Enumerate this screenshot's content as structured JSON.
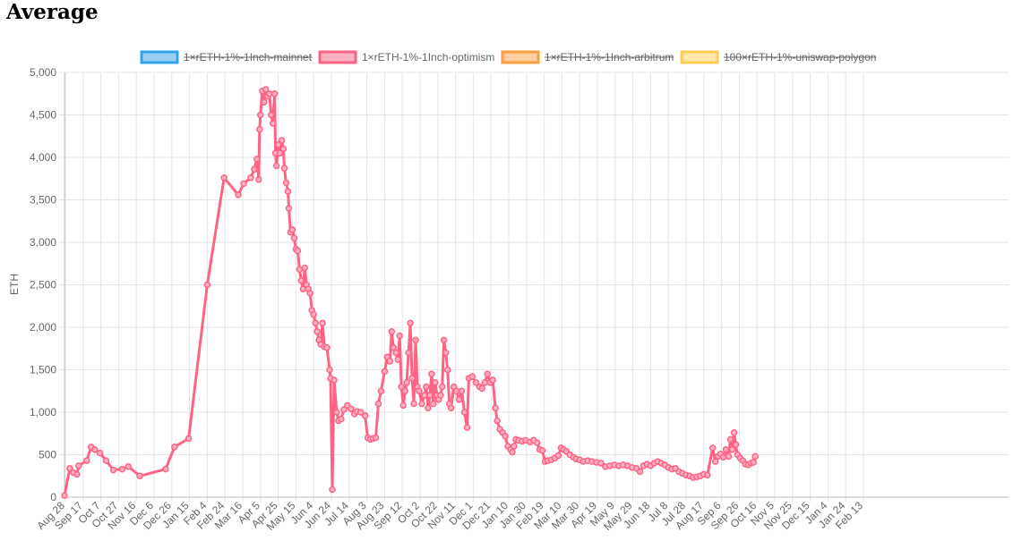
{
  "page": {
    "title": "Average"
  },
  "colors": {
    "grid": "#e5e5e5",
    "axis": "#bdbdbd",
    "tick_text": "#666666"
  },
  "chart_data": {
    "type": "line",
    "title": "",
    "xlabel": "",
    "ylabel": "ETH",
    "ylim": [
      0,
      5000
    ],
    "y_ticks": [
      "0",
      "500",
      "1,000",
      "1,500",
      "2,000",
      "2,500",
      "3,000",
      "3,500",
      "4,000",
      "4,500",
      "5,000"
    ],
    "y_tick_values": [
      0,
      500,
      1000,
      1500,
      2000,
      2500,
      3000,
      3500,
      4000,
      4500,
      5000
    ],
    "x_ticks": [
      "Aug 28",
      "Sep 17",
      "Oct 7",
      "Oct 27",
      "Nov 16",
      "Dec 6",
      "Dec 26",
      "Jan 15",
      "Feb 4",
      "Feb 24",
      "Mar 16",
      "Apr 5",
      "Apr 25",
      "May 15",
      "Jun 4",
      "Jun 24",
      "Jul 14",
      "Aug 3",
      "Aug 23",
      "Sep 12",
      "Oct 2",
      "Oct 22",
      "Nov 11",
      "Dec 1",
      "Dec 21",
      "Jan 10",
      "Jan 30",
      "Feb 19",
      "Mar 10",
      "Mar 30",
      "Apr 19",
      "May 9",
      "May 29",
      "Jun 18",
      "Jul 8",
      "Jul 28",
      "Aug 17",
      "Sep 6",
      "Sep 26",
      "Oct 16",
      "Nov 5",
      "Nov 25",
      "Dec 15",
      "Jan 4",
      "Jan 24",
      "Feb 13"
    ],
    "grid": true,
    "legend_position": "top",
    "series": [
      {
        "name": "1×rETH-1%-1Inch-mainnet",
        "color": "#36a2eb",
        "fill": "#9ad0f5",
        "hidden": true,
        "points": []
      },
      {
        "name": "1×rETH-1%-1Inch-optimism",
        "color": "#ff6384",
        "fill": "#ffb1c1",
        "hidden": false,
        "points": [
          [
            "Aug 28 2021",
            20
          ],
          [
            "Sep 3 2021",
            340
          ],
          [
            "Sep 7 2021",
            290
          ],
          [
            "Sep 11 2021",
            270
          ],
          [
            "Sep 13 2021",
            370
          ],
          [
            "Sep 22 2021",
            430
          ],
          [
            "Sep 27 2021",
            590
          ],
          [
            "Oct 1 2021",
            560
          ],
          [
            "Oct 7 2021",
            520
          ],
          [
            "Oct 14 2021",
            430
          ],
          [
            "Oct 22 2021",
            320
          ],
          [
            "Nov 1 2021",
            330
          ],
          [
            "Nov 8 2021",
            360
          ],
          [
            "Nov 21 2021",
            250
          ],
          [
            "Dec 20 2021",
            330
          ],
          [
            "Dec 30 2021",
            590
          ],
          [
            "Jan 15 2022",
            690
          ],
          [
            "Feb 5 2022",
            2500
          ],
          [
            "Feb 24 2022",
            3760
          ],
          [
            "Mar 12 2022",
            3560
          ],
          [
            "Mar 18 2022",
            3690
          ],
          [
            "Mar 26 2022",
            3760
          ],
          [
            "Mar 30 2022",
            3860
          ],
          [
            "Apr 2 2022",
            3980
          ],
          [
            "Apr 4 2022",
            3740
          ],
          [
            "Apr 5 2022",
            4330
          ],
          [
            "Apr 6 2022",
            4500
          ],
          [
            "Apr 8 2022",
            4780
          ],
          [
            "Apr 10 2022",
            4650
          ],
          [
            "Apr 12 2022",
            4800
          ],
          [
            "Apr 14 2022",
            4720
          ],
          [
            "Apr 16 2022",
            4750
          ],
          [
            "Apr 18 2022",
            4500
          ],
          [
            "Apr 20 2022",
            4400
          ],
          [
            "Apr 22 2022",
            4750
          ],
          [
            "Apr 23 2022",
            4050
          ],
          [
            "Apr 24 2022",
            3900
          ],
          [
            "Apr 26 2022",
            4150
          ],
          [
            "Apr 28 2022",
            4050
          ],
          [
            "Apr 30 2022",
            4200
          ],
          [
            "May 2 2022",
            4100
          ],
          [
            "May 3 2022",
            3870
          ],
          [
            "May 5 2022",
            3700
          ],
          [
            "May 7 2022",
            3600
          ],
          [
            "May 8 2022",
            3400
          ],
          [
            "May 10 2022",
            3120
          ],
          [
            "May 12 2022",
            3150
          ],
          [
            "May 14 2022",
            3050
          ],
          [
            "May 16 2022",
            2920
          ],
          [
            "May 18 2022",
            2900
          ],
          [
            "May 20 2022",
            2680
          ],
          [
            "May 22 2022",
            2550
          ],
          [
            "May 24 2022",
            2450
          ],
          [
            "May 26 2022",
            2700
          ],
          [
            "May 28 2022",
            2500
          ],
          [
            "May 30 2022",
            2450
          ],
          [
            "Jun 1 2022",
            2400
          ],
          [
            "Jun 3 2022",
            2200
          ],
          [
            "Jun 5 2022",
            2150
          ],
          [
            "Jun 7 2022",
            2050
          ],
          [
            "Jun 9 2022",
            1950
          ],
          [
            "Jun 11 2022",
            1850
          ],
          [
            "Jun 13 2022",
            1800
          ],
          [
            "Jun 15 2022",
            2050
          ],
          [
            "Jun 17 2022",
            1770
          ],
          [
            "Jun 20 2022",
            1760
          ],
          [
            "Jun 23 2022",
            1500
          ],
          [
            "Jun 24 2022",
            1400
          ],
          [
            "Jun 26 2022",
            90
          ],
          [
            "Jun 28 2022",
            1380
          ],
          [
            "Jul 1 2022",
            1000
          ],
          [
            "Jul 3 2022",
            900
          ],
          [
            "Jul 6 2022",
            920
          ],
          [
            "Jul 9 2022",
            1030
          ],
          [
            "Jul 13 2022",
            1080
          ],
          [
            "Jul 17 2022",
            1040
          ],
          [
            "Jul 21 2022",
            980
          ],
          [
            "Jul 24 2022",
            1010
          ],
          [
            "Jul 28 2022",
            1000
          ],
          [
            "Aug 2 2022",
            960
          ],
          [
            "Aug 5 2022",
            700
          ],
          [
            "Aug 8 2022",
            680
          ],
          [
            "Aug 11 2022",
            690
          ],
          [
            "Aug 14 2022",
            700
          ],
          [
            "Aug 17 2022",
            1100
          ],
          [
            "Aug 20 2022",
            1250
          ],
          [
            "Aug 24 2022",
            1480
          ],
          [
            "Aug 27 2022",
            1650
          ],
          [
            "Aug 30 2022",
            1600
          ],
          [
            "Sep 1 2022",
            1950
          ],
          [
            "Sep 3 2022",
            1760
          ],
          [
            "Sep 6 2022",
            1700
          ],
          [
            "Sep 8 2022",
            1620
          ],
          [
            "Sep 10 2022",
            1900
          ],
          [
            "Sep 12 2022",
            1300
          ],
          [
            "Sep 14 2022",
            1080
          ],
          [
            "Sep 16 2022",
            1250
          ],
          [
            "Sep 18 2022",
            1350
          ],
          [
            "Sep 20 2022",
            1700
          ],
          [
            "Sep 22 2022",
            2050
          ],
          [
            "Sep 24 2022",
            1400
          ],
          [
            "Sep 26 2022",
            1100
          ],
          [
            "Sep 28 2022",
            1850
          ],
          [
            "Sep 30 2022",
            1300
          ],
          [
            "Oct 2 2022",
            1250
          ],
          [
            "Oct 5 2022",
            1100
          ],
          [
            "Oct 8 2022",
            1200
          ],
          [
            "Oct 10 2022",
            1300
          ],
          [
            "Oct 12 2022",
            1050
          ],
          [
            "Oct 14 2022",
            1200
          ],
          [
            "Oct 16 2022",
            1450
          ],
          [
            "Oct 18 2022",
            1100
          ],
          [
            "Oct 20 2022",
            1350
          ],
          [
            "Oct 22 2022",
            1200
          ],
          [
            "Oct 24 2022",
            1150
          ],
          [
            "Oct 26 2022",
            1200
          ],
          [
            "Oct 28 2022",
            1300
          ],
          [
            "Oct 30 2022",
            1850
          ],
          [
            "Nov 1 2022",
            1700
          ],
          [
            "Nov 3 2022",
            1500
          ],
          [
            "Nov 5 2022",
            1100
          ],
          [
            "Nov 7 2022",
            1050
          ],
          [
            "Nov 10 2022",
            1300
          ],
          [
            "Nov 13 2022",
            1250
          ],
          [
            "Nov 16 2022",
            1150
          ],
          [
            "Nov 19 2022",
            1250
          ],
          [
            "Nov 22 2022",
            1000
          ],
          [
            "Nov 25 2022",
            820
          ],
          [
            "Nov 27 2022",
            1400
          ],
          [
            "Dec 1 2022",
            1420
          ],
          [
            "Dec 5 2022",
            1350
          ],
          [
            "Dec 9 2022",
            1300
          ],
          [
            "Dec 12 2022",
            1280
          ],
          [
            "Dec 15 2022",
            1350
          ],
          [
            "Dec 18 2022",
            1450
          ],
          [
            "Dec 21 2022",
            1350
          ],
          [
            "Dec 24 2022",
            1380
          ],
          [
            "Dec 27 2022",
            1050
          ],
          [
            "Dec 29 2022",
            900
          ],
          [
            "Jan 1 2023",
            800
          ],
          [
            "Jan 4 2023",
            760
          ],
          [
            "Jan 7 2023",
            720
          ],
          [
            "Jan 10 2023",
            600
          ],
          [
            "Jan 13 2023",
            560
          ],
          [
            "Jan 15 2023",
            530
          ],
          [
            "Jan 17 2023",
            600
          ],
          [
            "Jan 19 2023",
            680
          ],
          [
            "Jan 22 2023",
            670
          ],
          [
            "Jan 26 2023",
            660
          ],
          [
            "Jan 30 2023",
            670
          ],
          [
            "Feb 4 2023",
            650
          ],
          [
            "Feb 8 2023",
            670
          ],
          [
            "Feb 12 2023",
            640
          ],
          [
            "Feb 15 2023",
            560
          ],
          [
            "Feb 18 2023",
            550
          ],
          [
            "Feb 21 2023",
            420
          ],
          [
            "Feb 24 2023",
            430
          ],
          [
            "Feb 28 2023",
            440
          ],
          [
            "Mar 4 2023",
            460
          ],
          [
            "Mar 8 2023",
            490
          ],
          [
            "Mar 11 2023",
            580
          ],
          [
            "Mar 14 2023",
            560
          ],
          [
            "Mar 17 2023",
            540
          ],
          [
            "Mar 21 2023",
            500
          ],
          [
            "Mar 25 2023",
            470
          ],
          [
            "Mar 28 2023",
            450
          ],
          [
            "Apr 1 2023",
            440
          ],
          [
            "Apr 5 2023",
            420
          ],
          [
            "Apr 10 2023",
            430
          ],
          [
            "Apr 15 2023",
            420
          ],
          [
            "Apr 20 2023",
            410
          ],
          [
            "Apr 25 2023",
            400
          ],
          [
            "Apr 30 2023",
            360
          ],
          [
            "May 5 2023",
            370
          ],
          [
            "May 10 2023",
            380
          ],
          [
            "May 15 2023",
            370
          ],
          [
            "May 20 2023",
            380
          ],
          [
            "May 25 2023",
            370
          ],
          [
            "May 30 2023",
            350
          ],
          [
            "Jun 4 2023",
            340
          ],
          [
            "Jun 8 2023",
            300
          ],
          [
            "Jun 12 2023",
            370
          ],
          [
            "Jun 16 2023",
            390
          ],
          [
            "Jun 20 2023",
            370
          ],
          [
            "Jun 24 2023",
            400
          ],
          [
            "Jun 28 2023",
            420
          ],
          [
            "Jul 2 2023",
            400
          ],
          [
            "Jul 6 2023",
            380
          ],
          [
            "Jul 10 2023",
            350
          ],
          [
            "Jul 14 2023",
            330
          ],
          [
            "Jul 18 2023",
            340
          ],
          [
            "Jul 22 2023",
            300
          ],
          [
            "Jul 26 2023",
            280
          ],
          [
            "Jul 30 2023",
            260
          ],
          [
            "Aug 3 2023",
            250
          ],
          [
            "Aug 7 2023",
            230
          ],
          [
            "Aug 11 2023",
            240
          ],
          [
            "Aug 15 2023",
            250
          ],
          [
            "Aug 19 2023",
            270
          ],
          [
            "Aug 23 2023",
            260
          ],
          [
            "Aug 29 2023",
            580
          ],
          [
            "Sep 1 2023",
            420
          ],
          [
            "Sep 4 2023",
            480
          ],
          [
            "Sep 7 2023",
            510
          ],
          [
            "Sep 10 2023",
            470
          ],
          [
            "Sep 13 2023",
            560
          ],
          [
            "Sep 16 2023",
            480
          ],
          [
            "Sep 18 2023",
            680
          ],
          [
            "Sep 20 2023",
            560
          ],
          [
            "Sep 22 2023",
            760
          ],
          [
            "Sep 24 2023",
            620
          ],
          [
            "Sep 26 2023",
            500
          ],
          [
            "Sep 29 2023",
            460
          ],
          [
            "Oct 2 2023",
            430
          ],
          [
            "Oct 5 2023",
            390
          ],
          [
            "Oct 8 2023",
            380
          ],
          [
            "Oct 11 2023",
            400
          ],
          [
            "Oct 14 2023",
            410
          ],
          [
            "Oct 16 2023",
            480
          ]
        ]
      },
      {
        "name": "1×rETH-1%-1Inch-arbitrum",
        "color": "#ff9f40",
        "fill": "#ffcf9f",
        "hidden": true,
        "points": []
      },
      {
        "name": "100×rETH-1%-uniswap-polygon",
        "color": "#ffcd56",
        "fill": "#ffe6aa",
        "hidden": true,
        "points": []
      }
    ]
  }
}
